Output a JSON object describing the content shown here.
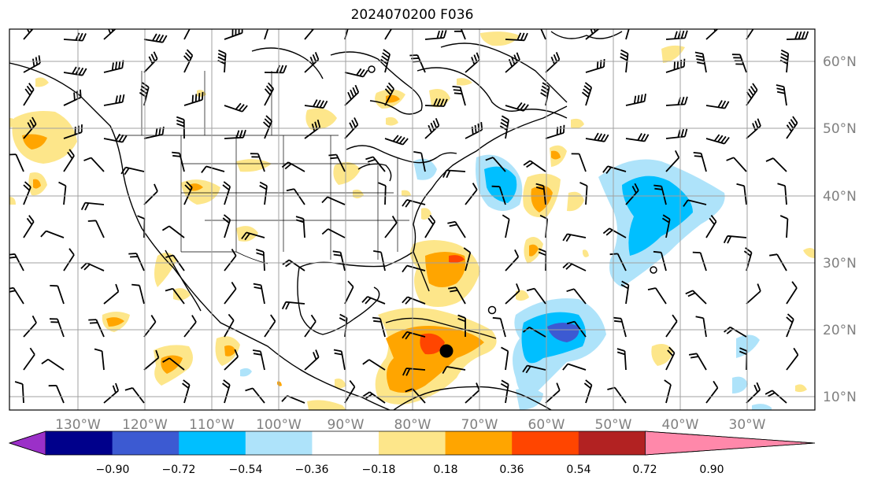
{
  "title": "2024070200 F036",
  "lat_labels": [
    "60°N",
    "50°N",
    "40°N",
    "30°N",
    "20°N",
    "10°N"
  ],
  "lon_labels": [
    "130°W",
    "120°W",
    "110°W",
    "100°W",
    "90°W",
    "80°W",
    "70°W",
    "60°W",
    "50°W",
    "40°W",
    "30°W"
  ],
  "colorbar": {
    "ticks": [
      "−0.90",
      "−0.72",
      "−0.54",
      "−0.36",
      "−0.18",
      "0.18",
      "0.36",
      "0.54",
      "0.72",
      "0.90"
    ],
    "colors": [
      "#9b30c8",
      "#00008b",
      "#3c5ad2",
      "#00bfff",
      "#aee3fa",
      "#ffffff",
      "#fde68a",
      "#ffa500",
      "#ff4500",
      "#b22222",
      "#ff88aa"
    ]
  },
  "colors": {
    "frame": "#000000",
    "grid": "#a0a0a0",
    "yellow": "#fde68a",
    "orange": "#ffa500",
    "red": "#ff4500",
    "light_blue": "#aee3fa",
    "cyan": "#00bfff",
    "blue": "#3c5ad2"
  },
  "storm_marker": {
    "lon": -75,
    "lat": 17
  }
}
